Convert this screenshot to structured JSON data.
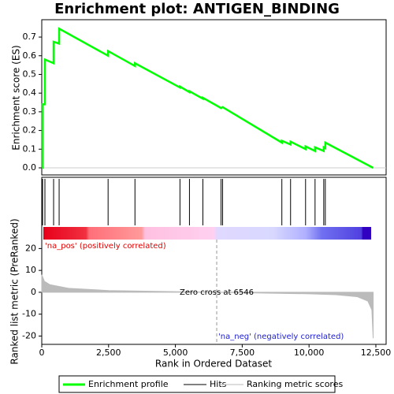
{
  "title": "Enrichment plot: ANTIGEN_BINDING",
  "chart_data": [
    {
      "type": "line",
      "ylabel": "Enrichment score (ES)",
      "series": [
        {
          "name": "Enrichment profile",
          "color": "#00ff00"
        }
      ],
      "x": [
        0,
        30,
        30,
        118,
        118,
        443,
        443,
        650,
        650,
        2482,
        2482,
        3487,
        3487,
        5171,
        5171,
        5526,
        5526,
        6028,
        6028,
        6708,
        6767,
        8983,
        8983,
        9309,
        9309,
        9870,
        9870,
        10225,
        10225,
        10550,
        10550,
        10609,
        10609,
        12400
      ],
      "values": [
        0,
        0,
        0.34,
        0.34,
        0.58,
        0.56,
        0.675,
        0.665,
        0.745,
        0.6,
        0.625,
        0.545,
        0.56,
        0.43,
        0.435,
        0.405,
        0.41,
        0.37,
        0.375,
        0.32,
        0.325,
        0.135,
        0.145,
        0.125,
        0.14,
        0.1,
        0.115,
        0.09,
        0.11,
        0.09,
        0.11,
        0.105,
        0.135,
        0
      ],
      "xlim": [
        0,
        12884
      ],
      "ylim": [
        -0.038,
        0.793
      ],
      "yticks": [
        {
          "value": 0,
          "label": "0.0"
        },
        0.1,
        0.2,
        0.3,
        0.4,
        0.5,
        0.6,
        0.7
      ]
    },
    {
      "type": "rug",
      "name": "Hits",
      "color": "#000000",
      "values": [
        30,
        118,
        443,
        650,
        2482,
        3487,
        5171,
        5526,
        6028,
        6708,
        6767,
        8983,
        9309,
        9870,
        10225,
        10550,
        10609
      ],
      "xlim": [
        0,
        12884
      ]
    },
    {
      "type": "area",
      "name": "Ranking metric scores",
      "color": "#bbbbbb",
      "ylabel": "Ranked list metric (PreRanked)",
      "xlabel": "Rank in Ordered Dataset",
      "x": [
        0,
        100,
        300,
        1000,
        2500,
        5000,
        6546,
        8000,
        10000,
        11000,
        11800,
        12200,
        12350,
        12400
      ],
      "values": [
        8,
        5,
        3.5,
        1.8,
        0.8,
        0.3,
        0,
        -0.3,
        -0.7,
        -1.1,
        -2,
        -4,
        -8,
        -21
      ],
      "zero_cross": 6546,
      "pos_label": "'na_pos' (positively correlated)",
      "neg_label": "'na_neg' (negatively correlated)",
      "zero_label": "Zero cross at 6546",
      "xlim": [
        0,
        12884
      ],
      "ylim": [
        -23.8,
        24.1
      ],
      "yticks": [
        20,
        10,
        0,
        -10,
        -20
      ],
      "xticks": [
        0,
        {
          "value": 2500,
          "label": "2,500"
        },
        {
          "value": 5000,
          "label": "5,000"
        },
        {
          "value": 7500,
          "label": "7,500"
        },
        {
          "value": 10000,
          "label": "10,000"
        },
        {
          "value": 12500,
          "label": "12,500"
        }
      ]
    }
  ]
}
